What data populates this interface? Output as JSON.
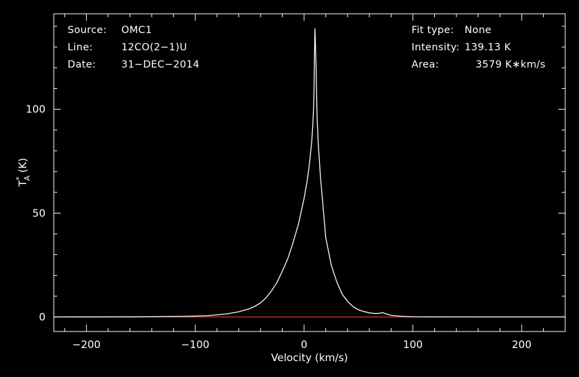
{
  "chart_data": {
    "type": "line",
    "xlabel": "Velocity (km/s)",
    "ylabel": "T",
    "ylabel_sub": "A",
    "ylabel_sup": "*",
    "ylabel_unit": "(K)",
    "xlim": [
      -230,
      240
    ],
    "ylim": [
      -7,
      146
    ],
    "x_ticks": [
      -200,
      -100,
      0,
      100,
      200
    ],
    "x_tick_labels": [
      "−200",
      "−100",
      "0",
      "100",
      "200"
    ],
    "y_ticks": [
      0,
      50,
      100
    ],
    "y_tick_labels": [
      "0",
      "50",
      "100"
    ],
    "grid": false,
    "colors": {
      "background": "#000000",
      "axes": "#ffffff",
      "spectrum": "#ffffff",
      "baseline": "#e8322a"
    },
    "baseline": {
      "y": 0
    },
    "series": [
      {
        "x": [
          -230,
          -150,
          -110,
          -90,
          -80,
          -70,
          -60,
          -50,
          -45,
          -40,
          -35,
          -30,
          -25,
          -20,
          -15,
          -10,
          -5,
          0,
          3,
          5,
          7,
          8,
          9,
          10,
          11,
          12,
          13,
          15,
          18,
          20,
          25,
          30,
          35,
          40,
          45,
          50,
          55,
          60,
          65,
          70,
          72,
          75,
          80,
          90,
          100,
          120,
          160,
          200,
          240
        ],
        "values": [
          0,
          0.1,
          0.3,
          0.6,
          1,
          1.6,
          2.5,
          4,
          5.2,
          6.8,
          9.2,
          12.5,
          16.5,
          22,
          28,
          36,
          45,
          57,
          66,
          74,
          84,
          92,
          104,
          139,
          122,
          96,
          84,
          68,
          50,
          38,
          25,
          17,
          11,
          7.5,
          5,
          3.5,
          2.6,
          2,
          1.7,
          1.8,
          2.2,
          1.5,
          0.8,
          0.3,
          0.1,
          0.05,
          0,
          0,
          0
        ]
      }
    ]
  },
  "info": {
    "source_label": "Source:",
    "source_value": "OMC1",
    "line_label": "Line:",
    "line_value": "12CO(2−1)U",
    "date_label": "Date:",
    "date_value": "31−DEC−2014",
    "fit_label": "Fit type:",
    "fit_value": "None",
    "intensity_label": "Intensity:",
    "intensity_value": "139.13 K",
    "area_label": "Area:",
    "area_value": "3579 K∗km/s"
  }
}
